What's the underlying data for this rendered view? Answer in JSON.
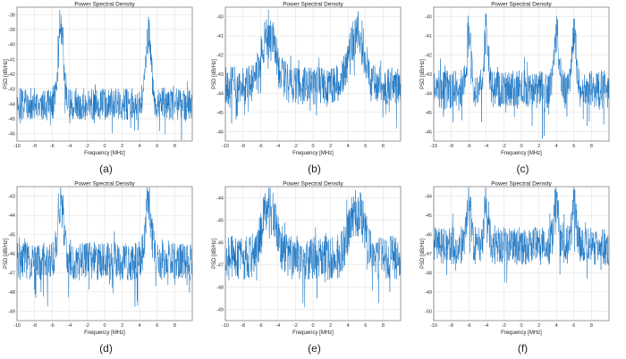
{
  "chart_data": [
    {
      "type": "line",
      "caption": "(a)",
      "title": "Power Spectral Density",
      "xlabel": "Frequency [MHz]",
      "ylabel": "PSD [dB/Hz]",
      "xlim": [
        -10,
        10
      ],
      "ylim": [
        -46.5,
        -37.5
      ],
      "yticks": [
        -46,
        -45,
        -44,
        -43,
        -42,
        -41,
        -40,
        -39,
        -38
      ],
      "xticks": [
        -10,
        -8,
        -6,
        -4,
        -2,
        0,
        2,
        4,
        6,
        8
      ],
      "grid": true,
      "color": "#0b6cbf",
      "noise_floor": -44.0,
      "noise_spread": 1.1,
      "peaks": [
        {
          "f": -5,
          "level": -38.2,
          "width": 0.45
        },
        {
          "f": 5,
          "level": -39.0,
          "width": 0.45
        }
      ]
    },
    {
      "type": "line",
      "caption": "(b)",
      "title": "Power Spectral Density",
      "xlabel": "Frequency [MHz]",
      "ylabel": "PSD [dB/Hz]",
      "xlim": [
        -10,
        10
      ],
      "ylim": [
        -46.5,
        -39.5
      ],
      "yticks": [
        -46,
        -45,
        -44,
        -43,
        -42,
        -41,
        -40
      ],
      "xticks": [
        -10,
        -8,
        -6,
        -4,
        -2,
        0,
        2,
        4,
        6,
        8
      ],
      "grid": true,
      "color": "#0b6cbf",
      "noise_floor": -43.6,
      "noise_spread": 1.0,
      "peaks": [
        {
          "f": -5,
          "level": -40.6,
          "width": 1.2
        },
        {
          "f": 5,
          "level": -40.6,
          "width": 1.2
        }
      ]
    },
    {
      "type": "line",
      "caption": "(c)",
      "title": "Power Spectral Density",
      "xlabel": "Frequency [MHz]",
      "ylabel": "PSD [dB/Hz]",
      "xlim": [
        -10,
        10
      ],
      "ylim": [
        -46.5,
        -39.5
      ],
      "yticks": [
        -46,
        -45,
        -44,
        -43,
        -42,
        -41,
        -40
      ],
      "xticks": [
        -10,
        -8,
        -6,
        -4,
        -2,
        0,
        2,
        4,
        6,
        8
      ],
      "grid": true,
      "color": "#0b6cbf",
      "noise_floor": -43.8,
      "noise_spread": 1.0,
      "peaks": [
        {
          "f": -6,
          "level": -40.3,
          "width": 0.35
        },
        {
          "f": -4,
          "level": -40.3,
          "width": 0.35
        },
        {
          "f": 4,
          "level": -40.3,
          "width": 0.35
        },
        {
          "f": 6,
          "level": -40.3,
          "width": 0.35
        }
      ]
    },
    {
      "type": "line",
      "caption": "(d)",
      "title": "Power Spectral Density",
      "xlabel": "Frequency [MHz]",
      "ylabel": "PSD [dB/Hz]",
      "xlim": [
        -10,
        10
      ],
      "ylim": [
        -49.5,
        -42.5
      ],
      "yticks": [
        -49,
        -48,
        -47,
        -46,
        -45,
        -44,
        -43
      ],
      "xticks": [
        -10,
        -8,
        -6,
        -4,
        -2,
        0,
        2,
        4,
        6,
        8
      ],
      "grid": true,
      "color": "#0b6cbf",
      "noise_floor": -46.4,
      "noise_spread": 1.0,
      "peaks": [
        {
          "f": -5,
          "level": -43.0,
          "width": 0.5
        },
        {
          "f": 5,
          "level": -43.0,
          "width": 0.5
        }
      ]
    },
    {
      "type": "line",
      "caption": "(e)",
      "title": "Power Spectral Density",
      "xlabel": "Frequency [MHz]",
      "ylabel": "PSD [dB/Hz]",
      "xlim": [
        -10,
        10
      ],
      "ylim": [
        -49.5,
        -43.5
      ],
      "yticks": [
        -49,
        -48,
        -47,
        -46,
        -45,
        -44
      ],
      "xticks": [
        -10,
        -8,
        -6,
        -4,
        -2,
        0,
        2,
        4,
        6,
        8
      ],
      "grid": true,
      "color": "#0b6cbf",
      "noise_floor": -46.7,
      "noise_spread": 1.0,
      "peaks": [
        {
          "f": -5,
          "level": -44.3,
          "width": 1.2
        },
        {
          "f": 5,
          "level": -44.3,
          "width": 1.2
        }
      ]
    },
    {
      "type": "line",
      "caption": "(f)",
      "title": "Power Spectral Density",
      "xlabel": "Frequency [MHz]",
      "ylabel": "PSD [dB/Hz]",
      "xlim": [
        -10,
        10
      ],
      "ylim": [
        -50.5,
        -43.5
      ],
      "yticks": [
        -50,
        -49,
        -48,
        -47,
        -46,
        -45,
        -44
      ],
      "xticks": [
        -10,
        -8,
        -6,
        -4,
        -2,
        0,
        2,
        4,
        6,
        8
      ],
      "grid": true,
      "color": "#0b6cbf",
      "noise_floor": -46.6,
      "noise_spread": 1.0,
      "peaks": [
        {
          "f": -6,
          "level": -44.0,
          "width": 0.35
        },
        {
          "f": -4,
          "level": -44.0,
          "width": 0.35
        },
        {
          "f": 4,
          "level": -44.0,
          "width": 0.35
        },
        {
          "f": 6,
          "level": -44.0,
          "width": 0.35
        }
      ]
    }
  ]
}
